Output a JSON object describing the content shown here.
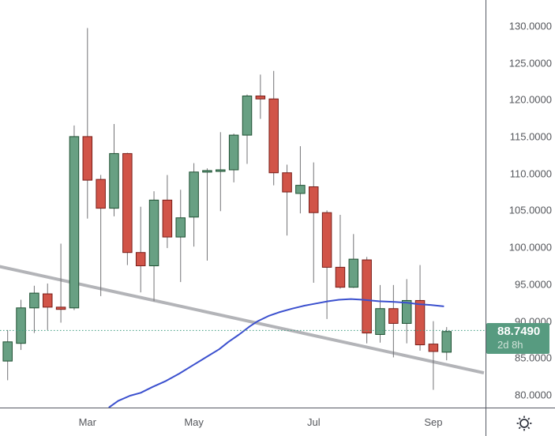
{
  "chart": {
    "background": "#ffffff",
    "price_axis": {
      "labels": [
        "130.0000",
        "125.0000",
        "120.0000",
        "115.0000",
        "110.0000",
        "105.0000",
        "100.0000",
        "95.0000",
        "90.0000",
        "85.0000",
        "80.0000"
      ],
      "prices": [
        130,
        125,
        120,
        115,
        110,
        105,
        100,
        95,
        90,
        85,
        80
      ]
    },
    "time_axis": {
      "ticks": [
        {
          "label": "Mar",
          "index": 6
        },
        {
          "label": "May",
          "index": 14
        },
        {
          "label": "Jul",
          "index": 23
        },
        {
          "label": "Sep",
          "index": 32
        }
      ]
    },
    "badge": {
      "price": "88.7490",
      "countdown": "2d 8h"
    },
    "chart_data": {
      "type": "candlestick",
      "x_unit": "week",
      "title": "",
      "ylim": [
        78.3,
        133.5
      ],
      "grid": false,
      "current_price": 88.749,
      "candles": [
        {
          "o": 84.6,
          "h": 88.8,
          "l": 82.0,
          "c": 87.2
        },
        {
          "o": 87.0,
          "h": 92.9,
          "l": 86.1,
          "c": 91.8
        },
        {
          "o": 91.8,
          "h": 94.8,
          "l": 88.4,
          "c": 93.8
        },
        {
          "o": 93.7,
          "h": 95.1,
          "l": 88.8,
          "c": 91.9
        },
        {
          "o": 91.9,
          "h": 100.5,
          "l": 89.8,
          "c": 91.6
        },
        {
          "o": 91.8,
          "h": 116.5,
          "l": 91.5,
          "c": 115.0
        },
        {
          "o": 115.0,
          "h": 129.7,
          "l": 103.9,
          "c": 109.1
        },
        {
          "o": 109.2,
          "h": 109.8,
          "l": 93.4,
          "c": 105.3
        },
        {
          "o": 105.3,
          "h": 116.7,
          "l": 104.2,
          "c": 112.7
        },
        {
          "o": 112.7,
          "h": 112.8,
          "l": 97.6,
          "c": 99.3
        },
        {
          "o": 99.3,
          "h": 105.5,
          "l": 93.9,
          "c": 97.5
        },
        {
          "o": 97.5,
          "h": 107.6,
          "l": 92.7,
          "c": 106.4
        },
        {
          "o": 106.4,
          "h": 109.8,
          "l": 99.9,
          "c": 101.4
        },
        {
          "o": 101.4,
          "h": 107.8,
          "l": 95.3,
          "c": 104.0
        },
        {
          "o": 104.1,
          "h": 111.4,
          "l": 100.1,
          "c": 110.2
        },
        {
          "o": 110.2,
          "h": 110.7,
          "l": 98.2,
          "c": 110.4
        },
        {
          "o": 110.3,
          "h": 115.6,
          "l": 104.9,
          "c": 110.5
        },
        {
          "o": 110.5,
          "h": 115.4,
          "l": 108.8,
          "c": 115.2
        },
        {
          "o": 115.2,
          "h": 120.7,
          "l": 111.3,
          "c": 120.5
        },
        {
          "o": 120.5,
          "h": 123.4,
          "l": 117.4,
          "c": 120.1
        },
        {
          "o": 120.1,
          "h": 123.9,
          "l": 108.4,
          "c": 110.1
        },
        {
          "o": 110.1,
          "h": 111.2,
          "l": 101.6,
          "c": 107.5
        },
        {
          "o": 107.3,
          "h": 113.7,
          "l": 104.6,
          "c": 108.4
        },
        {
          "o": 108.2,
          "h": 111.5,
          "l": 95.2,
          "c": 104.7
        },
        {
          "o": 104.7,
          "h": 105.0,
          "l": 90.3,
          "c": 97.3
        },
        {
          "o": 97.3,
          "h": 104.4,
          "l": 94.4,
          "c": 94.6
        },
        {
          "o": 94.6,
          "h": 101.8,
          "l": 94.5,
          "c": 98.4
        },
        {
          "o": 98.3,
          "h": 98.7,
          "l": 87.0,
          "c": 88.4
        },
        {
          "o": 88.2,
          "h": 94.9,
          "l": 87.1,
          "c": 91.7
        },
        {
          "o": 91.7,
          "h": 94.9,
          "l": 85.1,
          "c": 89.7
        },
        {
          "o": 89.7,
          "h": 95.7,
          "l": 87.0,
          "c": 92.8
        },
        {
          "o": 92.8,
          "h": 97.6,
          "l": 86.0,
          "c": 86.8
        },
        {
          "o": 86.9,
          "h": 90.0,
          "l": 80.7,
          "c": 85.9
        },
        {
          "o": 85.8,
          "h": 89.2,
          "l": 84.7,
          "c": 88.6
        }
      ],
      "overlays": [
        {
          "name": "ma-line",
          "type": "line",
          "color": "#3b50ce",
          "points": [
            [
              7.6,
              78.3
            ],
            [
              8.3,
              79.2
            ],
            [
              9.2,
              79.9
            ],
            [
              10.0,
              80.3
            ],
            [
              10.9,
              81.1
            ],
            [
              11.9,
              81.9
            ],
            [
              12.9,
              82.9
            ],
            [
              13.9,
              84.0
            ],
            [
              14.9,
              85.1
            ],
            [
              15.9,
              86.2
            ],
            [
              16.6,
              87.2
            ],
            [
              17.4,
              88.2
            ],
            [
              18.2,
              89.3
            ],
            [
              18.8,
              90.0
            ],
            [
              19.6,
              90.7
            ],
            [
              20.4,
              91.2
            ],
            [
              21.4,
              91.7
            ],
            [
              22.3,
              92.1
            ],
            [
              23.2,
              92.4
            ],
            [
              24.1,
              92.7
            ],
            [
              24.9,
              92.9
            ],
            [
              25.8,
              93.0
            ],
            [
              26.7,
              92.9
            ],
            [
              27.9,
              92.7
            ],
            [
              29.1,
              92.6
            ],
            [
              30.0,
              92.5
            ],
            [
              30.9,
              92.3
            ],
            [
              31.8,
              92.2
            ],
            [
              32.8,
              92.0
            ]
          ]
        },
        {
          "name": "trend-line",
          "type": "line",
          "color": "#b3b4b8",
          "points": [
            [
              -0.6,
              97.4
            ],
            [
              35.8,
              83.0
            ]
          ]
        }
      ]
    },
    "colors": {
      "up_fill": "#68a083",
      "up_border": "#1e5032",
      "down_fill": "#d15448",
      "down_border": "#781e19",
      "wick": "#737376",
      "price_line": "#3c9b7f",
      "badge_bg": "#579b80",
      "axis_text": "#55575c",
      "axis_border": "#565a64"
    },
    "settings_icon": "gear"
  }
}
